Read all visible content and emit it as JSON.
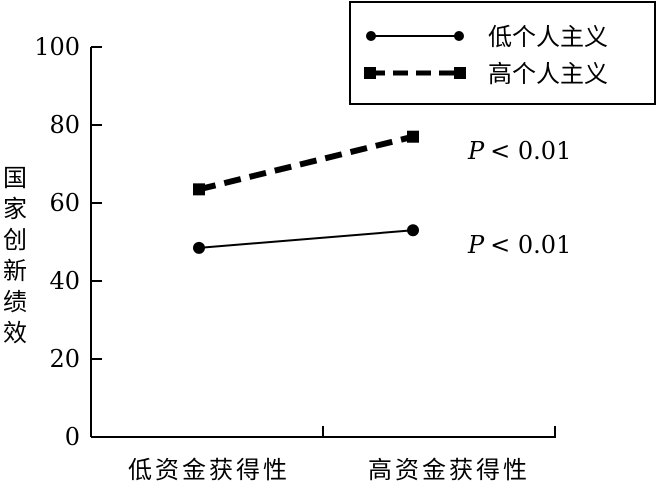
{
  "chart_data": {
    "type": "line",
    "title": "",
    "xlabel": "",
    "ylabel": "国家创新绩效",
    "categories": [
      "低资金获得性",
      "高资金获得性"
    ],
    "ylim": [
      0,
      100
    ],
    "yticks": [
      "0",
      "20",
      "40",
      "60",
      "80",
      "100"
    ],
    "grid": false,
    "legend_position": "top-right",
    "series": [
      {
        "name": "低个人主义",
        "values": [
          48.5,
          53
        ],
        "line_style": "solid",
        "marker": "circle",
        "color": "#000000"
      },
      {
        "name": "高个人主义",
        "values": [
          63.5,
          77
        ],
        "line_style": "dashed",
        "marker": "square",
        "color": "#000000"
      }
    ],
    "annotations": [
      {
        "p_symbol": "P",
        "text": "< 0.01",
        "series": "高个人主义"
      },
      {
        "p_symbol": "P",
        "text": "< 0.01",
        "series": "低个人主义"
      }
    ]
  }
}
